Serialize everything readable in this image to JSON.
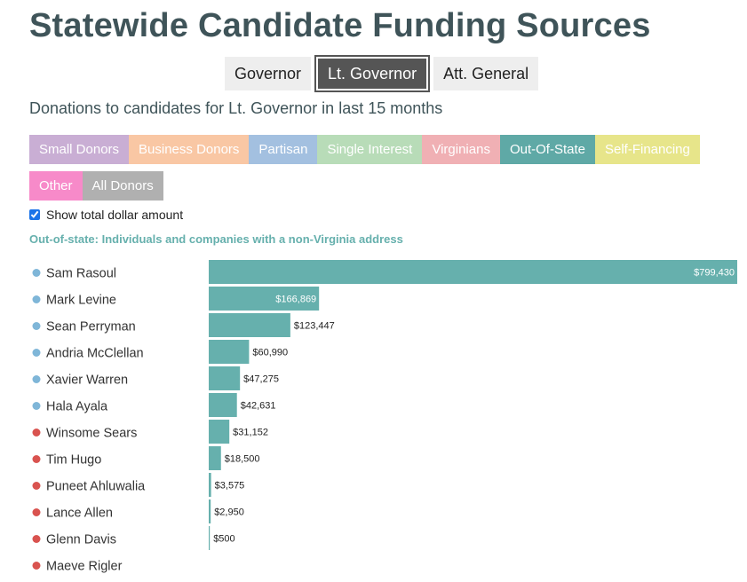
{
  "page": {
    "title": "Statewide Candidate Funding Sources",
    "subtitle": "Donations to candidates for Lt. Governor in last 15 months",
    "description": "Out-of-state: Individuals and companies with a non-Virginia address",
    "checkbox_label": "Show total dollar amount",
    "checkbox_checked": true
  },
  "office_tabs": [
    {
      "label": "Governor",
      "active": false
    },
    {
      "label": "Lt. Governor",
      "active": true
    },
    {
      "label": "Att. General",
      "active": false
    }
  ],
  "categories": [
    {
      "label": "Small Donors",
      "color": "#c9aed4",
      "active": false
    },
    {
      "label": "Business Donors",
      "color": "#f9c7a4",
      "active": false
    },
    {
      "label": "Partisan",
      "color": "#a3c0e0",
      "active": false
    },
    {
      "label": "Single Interest",
      "color": "#b8dcb8",
      "active": false
    },
    {
      "label": "Virginians",
      "color": "#f0b0b4",
      "active": false
    },
    {
      "label": "Out-Of-State",
      "color": "#5fa9a6",
      "active": true
    },
    {
      "label": "Self-Financing",
      "color": "#e7e58a",
      "active": false
    },
    {
      "label": "Other",
      "color": "#f78ac9",
      "active": false
    },
    {
      "label": "All Donors",
      "color": "#b0b0b0",
      "active": false
    }
  ],
  "colors": {
    "bar": "#66b0ad",
    "democrat_dot": "#7fb6d8",
    "republican_dot": "#d9534f"
  },
  "chart_data": {
    "type": "bar",
    "orientation": "horizontal",
    "categories": [
      "Sam Rasoul",
      "Mark Levine",
      "Sean Perryman",
      "Andria McClellan",
      "Xavier Warren",
      "Hala Ayala",
      "Winsome Sears",
      "Tim Hugo",
      "Puneet Ahluwalia",
      "Lance Allen",
      "Glenn Davis",
      "Maeve Rigler"
    ],
    "values": [
      799430,
      166869,
      123447,
      60990,
      47275,
      42631,
      31152,
      18500,
      3575,
      2950,
      500,
      0
    ],
    "value_labels": [
      "$799,430",
      "$166,869",
      "$123,447",
      "$60,990",
      "$47,275",
      "$42,631",
      "$31,152",
      "$18,500",
      "$3,575",
      "$2,950",
      "$500",
      ""
    ],
    "party": [
      "D",
      "D",
      "D",
      "D",
      "D",
      "D",
      "R",
      "R",
      "R",
      "R",
      "R",
      "R"
    ],
    "xlim": [
      0,
      799430
    ]
  }
}
